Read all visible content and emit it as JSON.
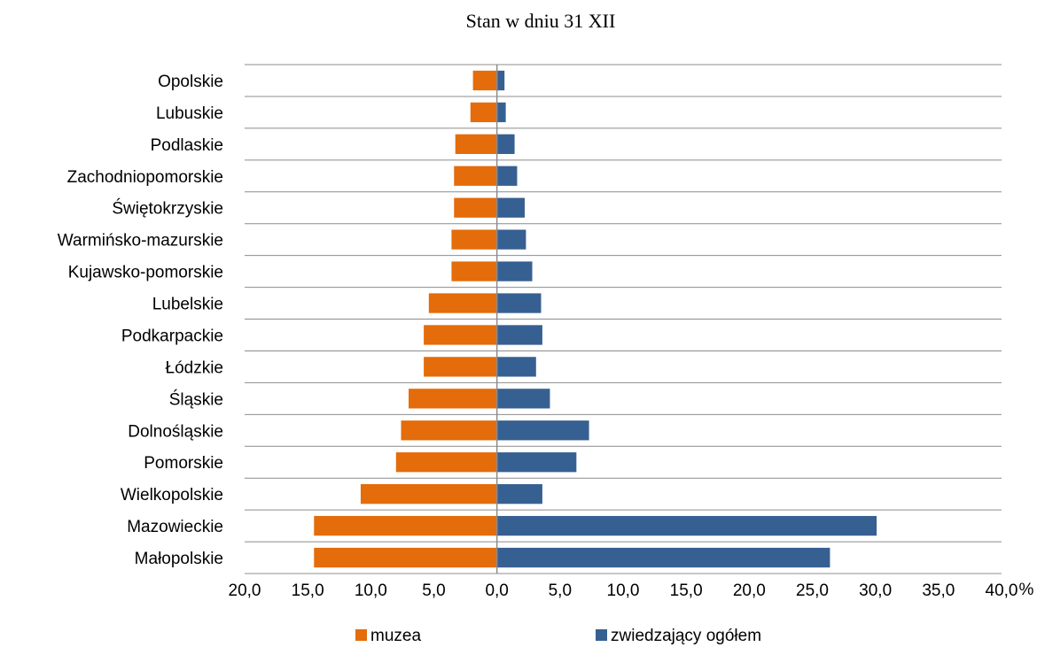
{
  "chart_data": {
    "type": "bar",
    "orientation": "horizontal-diverging",
    "title": "Stan w dniu 31 XII",
    "unit": "%",
    "categories": [
      "Opolskie",
      "Lubuskie",
      "Podlaskie",
      "Zachodniopomorskie",
      "Świętokrzyskie",
      "Warmińsko-mazurskie",
      "Kujawsko-pomorskie",
      "Lubelskie",
      "Podkarpackie",
      "Łódzkie",
      "Śląskie",
      "Dolnośląskie",
      "Pomorskie",
      "Wielkopolskie",
      "Mazowieckie",
      "Małopolskie"
    ],
    "series": [
      {
        "name": "muzea",
        "color": "#e46c0a",
        "direction": "left",
        "values": [
          1.9,
          2.1,
          3.3,
          3.4,
          3.4,
          3.6,
          3.6,
          5.4,
          5.8,
          5.8,
          7.0,
          7.6,
          8.0,
          10.8,
          14.5,
          14.5
        ]
      },
      {
        "name": "zwiedzający ogółem",
        "color": "#376092",
        "direction": "right",
        "values": [
          0.6,
          0.7,
          1.4,
          1.6,
          2.2,
          2.3,
          2.8,
          3.5,
          3.6,
          3.1,
          4.2,
          7.3,
          6.3,
          3.6,
          30.1,
          26.4
        ]
      }
    ],
    "x_ticks": [
      "20,0",
      "15,0",
      "10,0",
      "5,0",
      "0,0",
      "5,0",
      "10,0",
      "15,0",
      "20,0",
      "25,0",
      "30,0",
      "35,0",
      "40,0"
    ],
    "xlim": [
      -20,
      40
    ],
    "grid": true,
    "legend_position": "bottom"
  }
}
